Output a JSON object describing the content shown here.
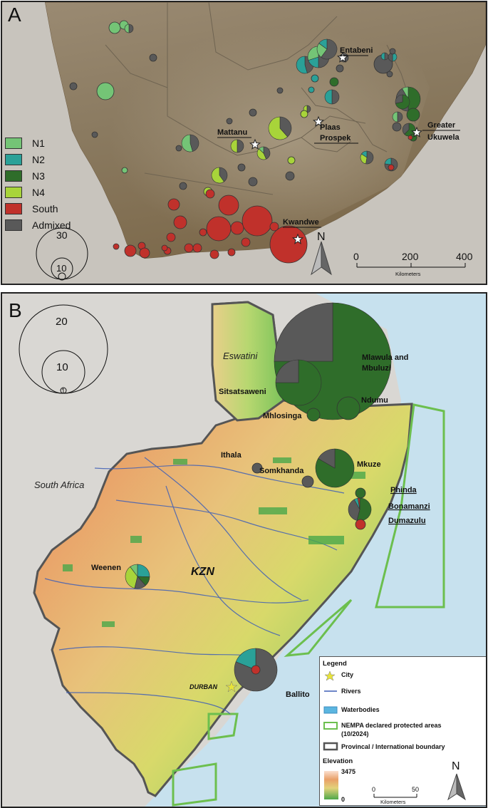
{
  "panel_a": {
    "letter": "A",
    "legend": [
      {
        "label": "N1",
        "color": "#74c476"
      },
      {
        "label": "N2",
        "color": "#2aa198"
      },
      {
        "label": "N3",
        "color": "#2f6d2a"
      },
      {
        "label": "N4",
        "color": "#a8d43a"
      },
      {
        "label": "South",
        "color": "#c0312b"
      },
      {
        "label": "Admixed",
        "color": "#595959"
      }
    ],
    "size_labels": [
      "30",
      "10"
    ],
    "places": [
      "Entabeni",
      "Greater",
      "Ukuwela",
      "Plaas",
      "Prospek",
      "Mattanu",
      "Kwandwe"
    ],
    "scale_ticks": [
      "0",
      "200",
      "400"
    ],
    "scale_unit": "Kilometers",
    "north": "N"
  },
  "panel_b": {
    "letter": "B",
    "size_labels": [
      "20",
      "10",
      "1"
    ],
    "places": [
      "Eswatini",
      "Sitsatsaweni",
      "Mlawula and",
      "Mbuluzi",
      "Mhlosinga",
      "Ndumu",
      "Ithala",
      "Somkhanda",
      "Mkuze",
      "Phinda",
      "Bonamanzi",
      "Dumazulu",
      "South Africa",
      "Weenen",
      "KZN",
      "DURBAN",
      "Ballito"
    ],
    "legend": {
      "title": "Legend",
      "items": [
        "City",
        "Rivers",
        "Waterbodies",
        "NEMPA declared protected areas",
        "(10/2024)",
        "Provincal / International boundary"
      ],
      "elevation_title": "Elevation",
      "elevation_max": "3475",
      "elevation_min": "0",
      "scale_ticks": [
        "0",
        "50"
      ],
      "scale_unit": "Kilometers",
      "north": "N"
    }
  }
}
